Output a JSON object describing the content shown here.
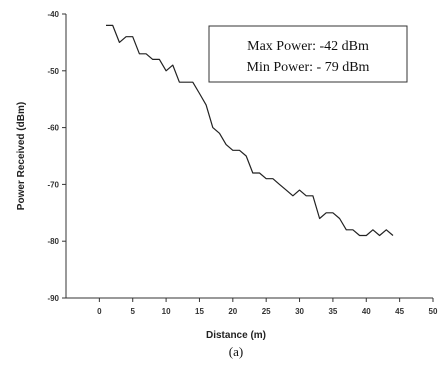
{
  "chart_data": {
    "type": "line",
    "xlabel": "Distance (m)",
    "ylabel": "Power Received (dBm)",
    "xlim": [
      -5,
      50
    ],
    "ylim": [
      -90,
      -40
    ],
    "xticks": [
      0,
      5,
      10,
      15,
      20,
      25,
      30,
      35,
      40,
      45,
      50
    ],
    "yticks": [
      -40,
      -50,
      -60,
      -70,
      -80,
      -90
    ],
    "grid": false,
    "legend": "none",
    "annotation": {
      "line1": "Max Power: -42 dBm",
      "line2": "Min Power: - 79 dBm",
      "placement": "top-right"
    },
    "caption": "(a)",
    "series": [
      {
        "color": "#222222",
        "x": [
          1,
          2,
          3,
          4,
          5,
          6,
          7,
          8,
          9,
          10,
          11,
          12,
          13,
          14,
          15,
          16,
          17,
          18,
          19,
          20,
          21,
          22,
          23,
          24,
          25,
          26,
          27,
          28,
          29,
          30,
          31,
          32,
          33,
          34,
          35,
          36,
          37,
          38,
          39,
          40,
          41,
          42,
          43,
          44
        ],
        "y": [
          -42,
          -42,
          -45,
          -44,
          -44,
          -47,
          -47,
          -48,
          -48,
          -50,
          -49,
          -52,
          -52,
          -52,
          -54,
          -56,
          -60,
          -61,
          -63,
          -64,
          -64,
          -65,
          -68,
          -68,
          -69,
          -69,
          -70,
          -71,
          -72,
          -71,
          -72,
          -72,
          -76,
          -75,
          -75,
          -76,
          -78,
          -78,
          -79,
          -79,
          -78,
          -79,
          -78,
          -79
        ]
      }
    ]
  }
}
